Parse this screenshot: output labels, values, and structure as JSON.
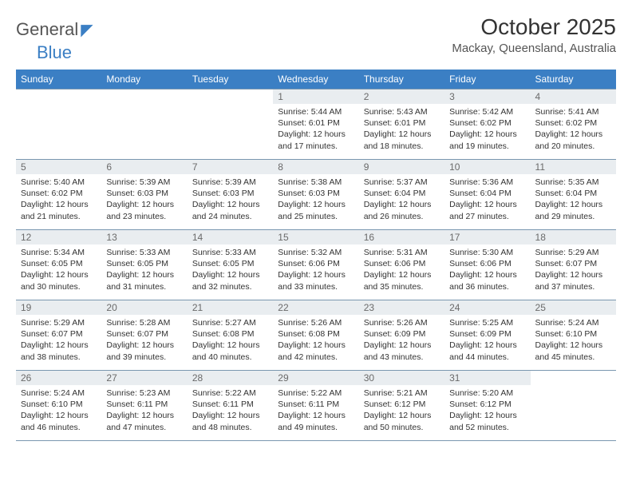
{
  "brand": {
    "name1": "General",
    "name2": "Blue"
  },
  "title": "October 2025",
  "location": "Mackay, Queensland, Australia",
  "colors": {
    "header_bg": "#3b7fc4",
    "header_text": "#ffffff",
    "daynum_bg": "#e9edf0",
    "daynum_text": "#6a6a6a",
    "cell_border": "#7a97b0",
    "body_text": "#333333",
    "page_bg": "#ffffff"
  },
  "calendar": {
    "type": "table",
    "weekdays": [
      "Sunday",
      "Monday",
      "Tuesday",
      "Wednesday",
      "Thursday",
      "Friday",
      "Saturday"
    ],
    "weeks": [
      [
        {
          "empty": true
        },
        {
          "empty": true
        },
        {
          "empty": true
        },
        {
          "day": "1",
          "sunrise": "Sunrise: 5:44 AM",
          "sunset": "Sunset: 6:01 PM",
          "dl1": "Daylight: 12 hours",
          "dl2": "and 17 minutes."
        },
        {
          "day": "2",
          "sunrise": "Sunrise: 5:43 AM",
          "sunset": "Sunset: 6:01 PM",
          "dl1": "Daylight: 12 hours",
          "dl2": "and 18 minutes."
        },
        {
          "day": "3",
          "sunrise": "Sunrise: 5:42 AM",
          "sunset": "Sunset: 6:02 PM",
          "dl1": "Daylight: 12 hours",
          "dl2": "and 19 minutes."
        },
        {
          "day": "4",
          "sunrise": "Sunrise: 5:41 AM",
          "sunset": "Sunset: 6:02 PM",
          "dl1": "Daylight: 12 hours",
          "dl2": "and 20 minutes."
        }
      ],
      [
        {
          "day": "5",
          "sunrise": "Sunrise: 5:40 AM",
          "sunset": "Sunset: 6:02 PM",
          "dl1": "Daylight: 12 hours",
          "dl2": "and 21 minutes."
        },
        {
          "day": "6",
          "sunrise": "Sunrise: 5:39 AM",
          "sunset": "Sunset: 6:03 PM",
          "dl1": "Daylight: 12 hours",
          "dl2": "and 23 minutes."
        },
        {
          "day": "7",
          "sunrise": "Sunrise: 5:39 AM",
          "sunset": "Sunset: 6:03 PM",
          "dl1": "Daylight: 12 hours",
          "dl2": "and 24 minutes."
        },
        {
          "day": "8",
          "sunrise": "Sunrise: 5:38 AM",
          "sunset": "Sunset: 6:03 PM",
          "dl1": "Daylight: 12 hours",
          "dl2": "and 25 minutes."
        },
        {
          "day": "9",
          "sunrise": "Sunrise: 5:37 AM",
          "sunset": "Sunset: 6:04 PM",
          "dl1": "Daylight: 12 hours",
          "dl2": "and 26 minutes."
        },
        {
          "day": "10",
          "sunrise": "Sunrise: 5:36 AM",
          "sunset": "Sunset: 6:04 PM",
          "dl1": "Daylight: 12 hours",
          "dl2": "and 27 minutes."
        },
        {
          "day": "11",
          "sunrise": "Sunrise: 5:35 AM",
          "sunset": "Sunset: 6:04 PM",
          "dl1": "Daylight: 12 hours",
          "dl2": "and 29 minutes."
        }
      ],
      [
        {
          "day": "12",
          "sunrise": "Sunrise: 5:34 AM",
          "sunset": "Sunset: 6:05 PM",
          "dl1": "Daylight: 12 hours",
          "dl2": "and 30 minutes."
        },
        {
          "day": "13",
          "sunrise": "Sunrise: 5:33 AM",
          "sunset": "Sunset: 6:05 PM",
          "dl1": "Daylight: 12 hours",
          "dl2": "and 31 minutes."
        },
        {
          "day": "14",
          "sunrise": "Sunrise: 5:33 AM",
          "sunset": "Sunset: 6:05 PM",
          "dl1": "Daylight: 12 hours",
          "dl2": "and 32 minutes."
        },
        {
          "day": "15",
          "sunrise": "Sunrise: 5:32 AM",
          "sunset": "Sunset: 6:06 PM",
          "dl1": "Daylight: 12 hours",
          "dl2": "and 33 minutes."
        },
        {
          "day": "16",
          "sunrise": "Sunrise: 5:31 AM",
          "sunset": "Sunset: 6:06 PM",
          "dl1": "Daylight: 12 hours",
          "dl2": "and 35 minutes."
        },
        {
          "day": "17",
          "sunrise": "Sunrise: 5:30 AM",
          "sunset": "Sunset: 6:06 PM",
          "dl1": "Daylight: 12 hours",
          "dl2": "and 36 minutes."
        },
        {
          "day": "18",
          "sunrise": "Sunrise: 5:29 AM",
          "sunset": "Sunset: 6:07 PM",
          "dl1": "Daylight: 12 hours",
          "dl2": "and 37 minutes."
        }
      ],
      [
        {
          "day": "19",
          "sunrise": "Sunrise: 5:29 AM",
          "sunset": "Sunset: 6:07 PM",
          "dl1": "Daylight: 12 hours",
          "dl2": "and 38 minutes."
        },
        {
          "day": "20",
          "sunrise": "Sunrise: 5:28 AM",
          "sunset": "Sunset: 6:07 PM",
          "dl1": "Daylight: 12 hours",
          "dl2": "and 39 minutes."
        },
        {
          "day": "21",
          "sunrise": "Sunrise: 5:27 AM",
          "sunset": "Sunset: 6:08 PM",
          "dl1": "Daylight: 12 hours",
          "dl2": "and 40 minutes."
        },
        {
          "day": "22",
          "sunrise": "Sunrise: 5:26 AM",
          "sunset": "Sunset: 6:08 PM",
          "dl1": "Daylight: 12 hours",
          "dl2": "and 42 minutes."
        },
        {
          "day": "23",
          "sunrise": "Sunrise: 5:26 AM",
          "sunset": "Sunset: 6:09 PM",
          "dl1": "Daylight: 12 hours",
          "dl2": "and 43 minutes."
        },
        {
          "day": "24",
          "sunrise": "Sunrise: 5:25 AM",
          "sunset": "Sunset: 6:09 PM",
          "dl1": "Daylight: 12 hours",
          "dl2": "and 44 minutes."
        },
        {
          "day": "25",
          "sunrise": "Sunrise: 5:24 AM",
          "sunset": "Sunset: 6:10 PM",
          "dl1": "Daylight: 12 hours",
          "dl2": "and 45 minutes."
        }
      ],
      [
        {
          "day": "26",
          "sunrise": "Sunrise: 5:24 AM",
          "sunset": "Sunset: 6:10 PM",
          "dl1": "Daylight: 12 hours",
          "dl2": "and 46 minutes."
        },
        {
          "day": "27",
          "sunrise": "Sunrise: 5:23 AM",
          "sunset": "Sunset: 6:11 PM",
          "dl1": "Daylight: 12 hours",
          "dl2": "and 47 minutes."
        },
        {
          "day": "28",
          "sunrise": "Sunrise: 5:22 AM",
          "sunset": "Sunset: 6:11 PM",
          "dl1": "Daylight: 12 hours",
          "dl2": "and 48 minutes."
        },
        {
          "day": "29",
          "sunrise": "Sunrise: 5:22 AM",
          "sunset": "Sunset: 6:11 PM",
          "dl1": "Daylight: 12 hours",
          "dl2": "and 49 minutes."
        },
        {
          "day": "30",
          "sunrise": "Sunrise: 5:21 AM",
          "sunset": "Sunset: 6:12 PM",
          "dl1": "Daylight: 12 hours",
          "dl2": "and 50 minutes."
        },
        {
          "day": "31",
          "sunrise": "Sunrise: 5:20 AM",
          "sunset": "Sunset: 6:12 PM",
          "dl1": "Daylight: 12 hours",
          "dl2": "and 52 minutes."
        },
        {
          "empty": true
        }
      ]
    ]
  }
}
